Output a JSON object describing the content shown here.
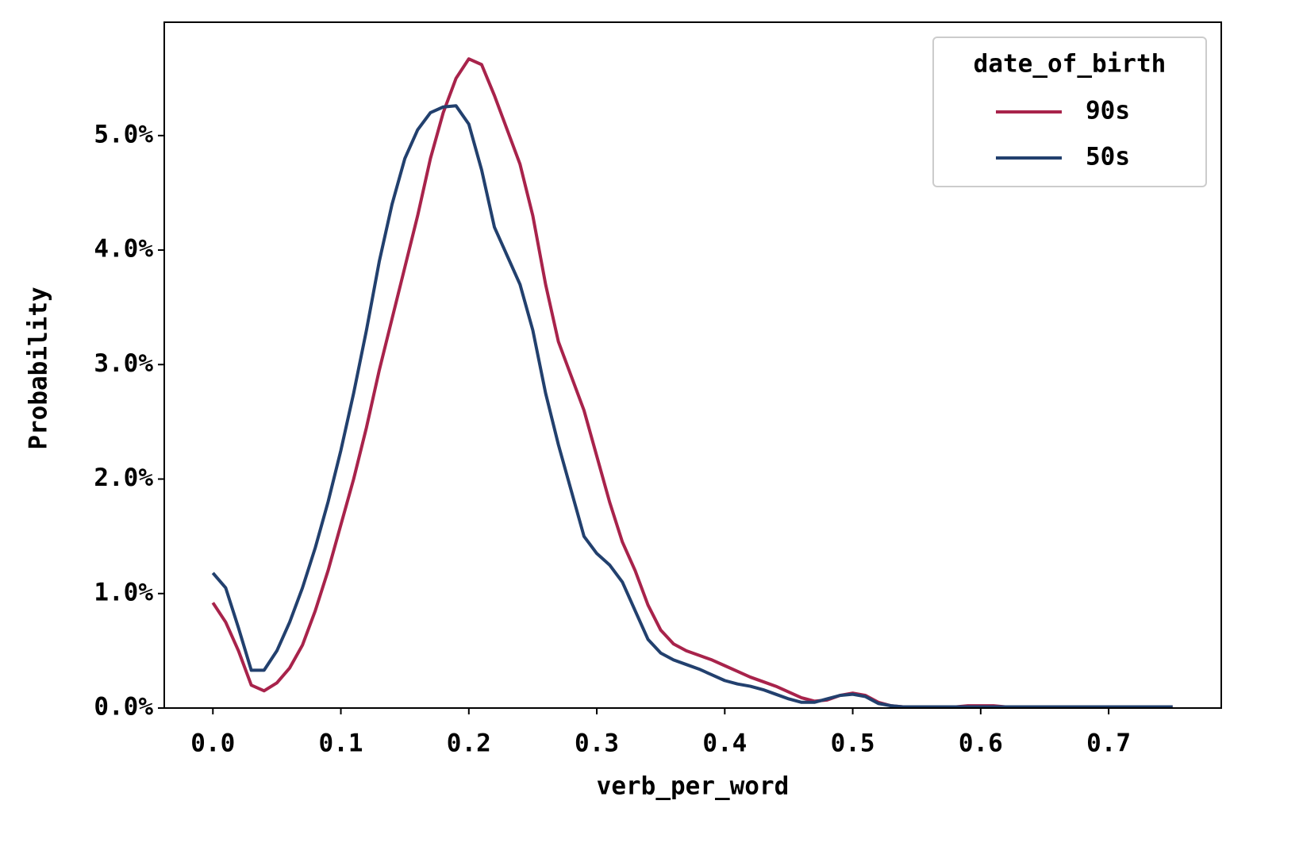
{
  "chart_data": {
    "type": "line",
    "x_label": "verb_per_word",
    "y_label": "Probability",
    "legend_title": "date_of_birth",
    "legend_loc": "upper right",
    "xlim": [
      -0.038,
      0.788
    ],
    "xticks": [
      {
        "value": 0,
        "label": "0.0"
      },
      0.1,
      0.2,
      0.3,
      0.4,
      0.5,
      0.6,
      0.7
    ],
    "ylim": [
      0,
      5.99
    ],
    "yticks": [
      {
        "value": 0,
        "label": "0.0%"
      },
      {
        "value": 1,
        "label": "1.0%"
      },
      {
        "value": 2,
        "label": "2.0%"
      },
      {
        "value": 3,
        "label": "3.0%"
      },
      {
        "value": 4,
        "label": "4.0%"
      },
      {
        "value": 5,
        "label": "5.0%"
      }
    ],
    "x": [
      0,
      0.01,
      0.02,
      0.03,
      0.04,
      0.05,
      0.06,
      0.07,
      0.08,
      0.09,
      0.1,
      0.11,
      0.12,
      0.13,
      0.14,
      0.15,
      0.16,
      0.17,
      0.18,
      0.19,
      0.2,
      0.21,
      0.22,
      0.23,
      0.24,
      0.25,
      0.26,
      0.27,
      0.28,
      0.29,
      0.3,
      0.31,
      0.32,
      0.33,
      0.34,
      0.35,
      0.36,
      0.37,
      0.38,
      0.39,
      0.4,
      0.41,
      0.42,
      0.43,
      0.44,
      0.45,
      0.46,
      0.47,
      0.48,
      0.49,
      0.5,
      0.51,
      0.52,
      0.53,
      0.54,
      0.55,
      0.56,
      0.57,
      0.58,
      0.59,
      0.6,
      0.61,
      0.62,
      0.63,
      0.64,
      0.65,
      0.66,
      0.67,
      0.68,
      0.69,
      0.7,
      0.71,
      0.72,
      0.73,
      0.74,
      0.75
    ],
    "series": [
      {
        "name": "90s",
        "color": "#a8234b",
        "values": [
          0.92,
          0.75,
          0.5,
          0.2,
          0.15,
          0.22,
          0.35,
          0.55,
          0.85,
          1.2,
          1.6,
          2.0,
          2.45,
          2.95,
          3.4,
          3.85,
          4.3,
          4.8,
          5.2,
          5.5,
          5.67,
          5.62,
          5.35,
          5.05,
          4.75,
          4.3,
          3.7,
          3.2,
          2.9,
          2.6,
          2.2,
          1.8,
          1.45,
          1.2,
          0.9,
          0.68,
          0.56,
          0.5,
          0.46,
          0.42,
          0.37,
          0.32,
          0.27,
          0.23,
          0.19,
          0.14,
          0.09,
          0.06,
          0.07,
          0.11,
          0.13,
          0.11,
          0.05,
          0.02,
          0.01,
          0.01,
          0.01,
          0.01,
          0.01,
          0.02,
          0.02,
          0.02,
          0.01,
          0.01,
          0.01,
          0.01,
          0.01,
          0.01,
          0.01,
          0.01,
          0.01,
          0.01,
          0.01,
          0.01,
          0.01,
          0.01
        ]
      },
      {
        "name": "50s",
        "color": "#22406e",
        "values": [
          1.18,
          1.05,
          0.7,
          0.33,
          0.33,
          0.5,
          0.75,
          1.05,
          1.4,
          1.8,
          2.25,
          2.75,
          3.3,
          3.9,
          4.4,
          4.8,
          5.05,
          5.2,
          5.25,
          5.26,
          5.1,
          4.7,
          4.2,
          3.95,
          3.7,
          3.3,
          2.75,
          2.3,
          1.9,
          1.5,
          1.35,
          1.25,
          1.1,
          0.85,
          0.6,
          0.48,
          0.42,
          0.38,
          0.34,
          0.29,
          0.24,
          0.21,
          0.19,
          0.16,
          0.12,
          0.08,
          0.05,
          0.05,
          0.08,
          0.11,
          0.12,
          0.1,
          0.04,
          0.02,
          0.01,
          0.01,
          0.01,
          0.01,
          0.01,
          0.01,
          0.01,
          0.01,
          0.01,
          0.01,
          0.01,
          0.01,
          0.01,
          0.01,
          0.01,
          0.01,
          0.01,
          0.01,
          0.01,
          0.01,
          0.01,
          0.01
        ]
      }
    ]
  }
}
